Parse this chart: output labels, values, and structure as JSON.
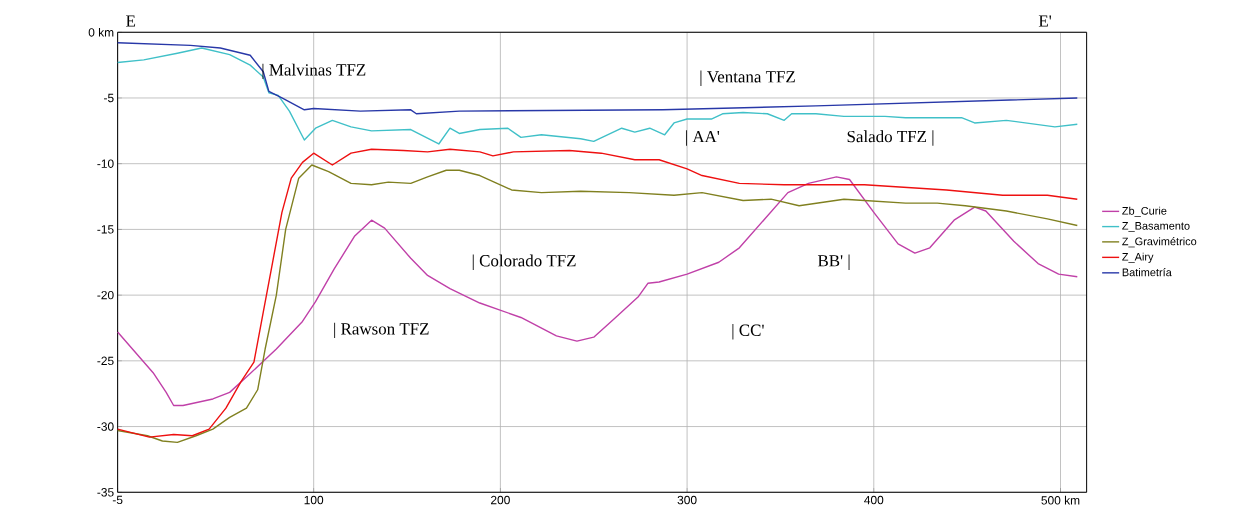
{
  "chart_data": {
    "type": "line",
    "xlim": [
      -5,
      514
    ],
    "ylim": [
      -35,
      0
    ],
    "xticks": [
      -5,
      100,
      200,
      300,
      400,
      {
        "value": 500,
        "label": "500 km"
      }
    ],
    "yticks": [
      {
        "value": 0,
        "label": "0 km"
      },
      -5,
      -10,
      -15,
      -20,
      -25,
      -30,
      -35
    ],
    "grid": true,
    "legend": "right",
    "marker": "none",
    "line_style": "solid",
    "annotations": [
      "E",
      "E'",
      "| Malvinas TFZ",
      "| Ventana TFZ",
      "| AA'",
      "Salado TFZ |",
      "| Colorado TFZ",
      "BB' |",
      "| Rawson TFZ",
      "| CC'"
    ],
    "series": [
      {
        "name": "Zb_Curie",
        "color": "#c040a8",
        "x": [
          -5,
          14,
          21,
          25,
          30,
          46,
          55,
          65,
          80,
          94,
          101,
          111,
          122,
          131,
          138,
          152,
          161,
          173,
          189,
          211,
          230,
          241,
          250,
          261,
          274,
          279,
          285,
          300,
          317,
          328,
          341,
          354,
          365,
          380,
          387,
          400,
          413,
          422,
          430,
          443,
          454,
          460,
          475,
          488,
          499,
          509
        ],
        "values": [
          -22.8,
          -25.9,
          -27.4,
          -28.4,
          -28.4,
          -27.9,
          -27.4,
          -26.1,
          -24.1,
          -22.0,
          -20.5,
          -18.0,
          -15.5,
          -14.3,
          -14.9,
          -17.2,
          -18.5,
          -19.5,
          -20.6,
          -21.7,
          -23.1,
          -23.5,
          -23.2,
          -21.8,
          -20.1,
          -19.1,
          -19.0,
          -18.4,
          -17.5,
          -16.4,
          -14.3,
          -12.2,
          -11.5,
          -11.0,
          -11.2,
          -13.7,
          -16.1,
          -16.8,
          -16.4,
          -14.3,
          -13.3,
          -13.6,
          -15.9,
          -17.6,
          -18.4,
          -18.6
        ]
      },
      {
        "name": "Z_Basamento",
        "color": "#40c0c8",
        "x": [
          -5,
          9,
          27,
          40,
          55,
          66,
          73,
          76,
          81,
          87,
          95,
          101,
          110,
          120,
          131,
          152,
          167,
          173,
          178,
          189,
          204,
          211,
          222,
          243,
          250,
          265,
          272,
          280,
          288,
          293,
          300,
          313,
          319,
          330,
          343,
          352,
          356,
          369,
          384,
          406,
          417,
          447,
          454,
          471,
          497,
          509
        ],
        "values": [
          -2.3,
          -2.1,
          -1.6,
          -1.2,
          -1.7,
          -2.5,
          -3.4,
          -4.6,
          -4.8,
          -6.0,
          -8.2,
          -7.3,
          -6.7,
          -7.2,
          -7.5,
          -7.4,
          -8.5,
          -7.3,
          -7.7,
          -7.4,
          -7.3,
          -8.0,
          -7.8,
          -8.1,
          -8.3,
          -7.3,
          -7.6,
          -7.3,
          -7.8,
          -6.9,
          -6.6,
          -6.6,
          -6.2,
          -6.1,
          -6.2,
          -6.7,
          -6.2,
          -6.2,
          -6.4,
          -6.4,
          -6.5,
          -6.5,
          -6.9,
          -6.7,
          -7.2,
          -7.0
        ]
      },
      {
        "name": "Z_Gravimétrico",
        "color": "#808020",
        "x": [
          -5,
          11,
          19,
          27,
          37,
          46,
          55,
          64,
          70,
          74,
          80,
          85,
          92,
          99,
          108,
          120,
          131,
          140,
          152,
          161,
          171,
          178,
          189,
          206,
          222,
          243,
          269,
          293,
          308,
          330,
          345,
          360,
          384,
          395,
          417,
          434,
          449,
          471,
          493,
          509
        ],
        "values": [
          -30.3,
          -30.7,
          -31.1,
          -31.2,
          -30.7,
          -30.2,
          -29.3,
          -28.6,
          -27.2,
          -24.1,
          -20.0,
          -15.0,
          -11.1,
          -10.1,
          -10.6,
          -11.5,
          -11.6,
          -11.4,
          -11.5,
          -11.0,
          -10.5,
          -10.5,
          -10.9,
          -12.0,
          -12.2,
          -12.1,
          -12.2,
          -12.4,
          -12.2,
          -12.8,
          -12.7,
          -13.2,
          -12.7,
          -12.8,
          -13.0,
          -13.0,
          -13.2,
          -13.6,
          -14.2,
          -14.7
        ]
      },
      {
        "name": "Z_Airy",
        "color": "#ee1010",
        "x": [
          -5,
          12,
          25,
          35,
          44,
          53,
          61,
          68,
          73,
          78,
          83,
          88,
          94,
          100,
          110,
          120,
          131,
          148,
          161,
          173,
          189,
          196,
          207,
          237,
          254,
          272,
          285,
          300,
          308,
          328,
          352,
          395,
          439,
          469,
          493,
          509
        ],
        "values": [
          -30.2,
          -30.8,
          -30.6,
          -30.7,
          -30.2,
          -28.6,
          -26.6,
          -25.1,
          -21.3,
          -17.5,
          -13.7,
          -11.1,
          -9.9,
          -9.2,
          -10.1,
          -9.2,
          -8.9,
          -9.0,
          -9.1,
          -8.9,
          -9.1,
          -9.4,
          -9.1,
          -9.0,
          -9.2,
          -9.7,
          -9.7,
          -10.4,
          -10.9,
          -11.5,
          -11.6,
          -11.6,
          -12.0,
          -12.4,
          -12.4,
          -12.7
        ]
      },
      {
        "name": "Batimetría",
        "color": "#2838a8",
        "x": [
          -5,
          34,
          50,
          66,
          73,
          76,
          83,
          95,
          100,
          125,
          152,
          155,
          178,
          287,
          369,
          509
        ],
        "values": [
          -0.8,
          -1.0,
          -1.2,
          -1.75,
          -3.0,
          -4.5,
          -5.0,
          -5.9,
          -5.8,
          -6.0,
          -5.9,
          -6.2,
          -6.0,
          -5.9,
          -5.6,
          -5.0
        ]
      }
    ]
  }
}
